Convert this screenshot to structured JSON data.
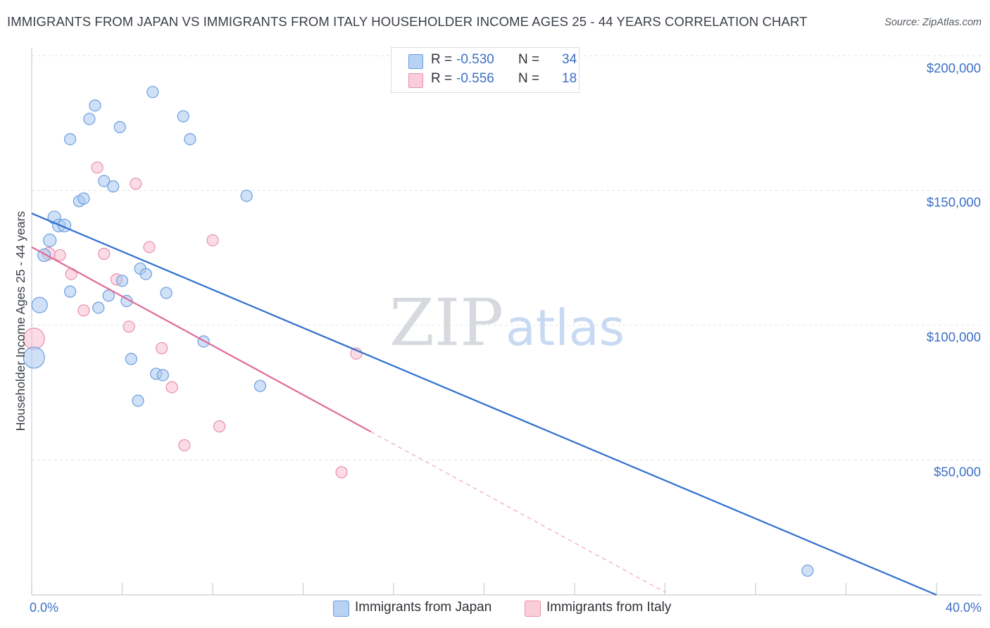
{
  "title": "IMMIGRANTS FROM JAPAN VS IMMIGRANTS FROM ITALY HOUSEHOLDER INCOME AGES 25 - 44 YEARS CORRELATION CHART",
  "source": "Source: ZipAtlas.com",
  "watermark": {
    "zip": "ZIP",
    "atlas": "atlas"
  },
  "colors": {
    "japan_fill": "#a9c8f0",
    "japan_stroke": "#6b9ee0",
    "japan_line": "#2f6fd0",
    "italy_fill": "#f7c0d0",
    "italy_stroke": "#e890aa",
    "italy_line": "#e06a96",
    "grid": "#dfe3e8",
    "tick_text": "#3d6fc6"
  },
  "legend": {
    "japan": {
      "r_label": "R =",
      "r_value": "-0.530",
      "n_label": "N =",
      "n_value": "34"
    },
    "italy": {
      "r_label": "R =",
      "r_value": "-0.556",
      "n_label": "N =",
      "n_value": "18"
    }
  },
  "bottom_legend": {
    "japan": "Immigrants from Japan",
    "italy": "Immigrants from Italy"
  },
  "chart_data": {
    "type": "scatter",
    "title": "IMMIGRANTS FROM JAPAN VS IMMIGRANTS FROM ITALY HOUSEHOLDER INCOME AGES 25 - 44 YEARS CORRELATION CHART",
    "xlabel": "",
    "ylabel": "Householder Income Ages 25 - 44 years",
    "xlim": [
      0,
      40
    ],
    "ylim": [
      0,
      205000
    ],
    "x_tick_labels": {
      "left": "0.0%",
      "right": "40.0%"
    },
    "y_ticks": [
      {
        "value": 50000,
        "label": "$50,000"
      },
      {
        "value": 100000,
        "label": "$100,000"
      },
      {
        "value": 150000,
        "label": "$150,000"
      },
      {
        "value": 200000,
        "label": "$200,000"
      }
    ],
    "series": [
      {
        "name": "Immigrants from Japan",
        "key": "japan",
        "points": [
          {
            "x": 0.1,
            "y": 88000,
            "r": 15
          },
          {
            "x": 0.35,
            "y": 107500,
            "r": 11
          },
          {
            "x": 0.55,
            "y": 126000,
            "r": 9
          },
          {
            "x": 0.8,
            "y": 131500,
            "r": 9
          },
          {
            "x": 1.0,
            "y": 140000,
            "r": 9
          },
          {
            "x": 1.2,
            "y": 137000,
            "r": 9
          },
          {
            "x": 1.45,
            "y": 137000,
            "r": 9
          },
          {
            "x": 1.7,
            "y": 112500,
            "r": 8
          },
          {
            "x": 1.7,
            "y": 169000,
            "r": 8
          },
          {
            "x": 2.1,
            "y": 146000,
            "r": 8
          },
          {
            "x": 2.3,
            "y": 147000,
            "r": 8
          },
          {
            "x": 2.55,
            "y": 176500,
            "r": 8
          },
          {
            "x": 2.8,
            "y": 181500,
            "r": 8
          },
          {
            "x": 2.95,
            "y": 106500,
            "r": 8
          },
          {
            "x": 3.2,
            "y": 153500,
            "r": 8
          },
          {
            "x": 3.4,
            "y": 111000,
            "r": 8
          },
          {
            "x": 3.6,
            "y": 151500,
            "r": 8
          },
          {
            "x": 3.9,
            "y": 173500,
            "r": 8
          },
          {
            "x": 4.0,
            "y": 116500,
            "r": 8
          },
          {
            "x": 4.2,
            "y": 109000,
            "r": 8
          },
          {
            "x": 4.4,
            "y": 87500,
            "r": 8
          },
          {
            "x": 4.7,
            "y": 72000,
            "r": 8
          },
          {
            "x": 4.8,
            "y": 121000,
            "r": 8
          },
          {
            "x": 5.05,
            "y": 119000,
            "r": 8
          },
          {
            "x": 5.35,
            "y": 186500,
            "r": 8
          },
          {
            "x": 5.5,
            "y": 82000,
            "r": 8
          },
          {
            "x": 5.8,
            "y": 81500,
            "r": 8
          },
          {
            "x": 5.95,
            "y": 112000,
            "r": 8
          },
          {
            "x": 6.7,
            "y": 177500,
            "r": 8
          },
          {
            "x": 7.0,
            "y": 169000,
            "r": 8
          },
          {
            "x": 7.6,
            "y": 94000,
            "r": 8
          },
          {
            "x": 9.5,
            "y": 148000,
            "r": 8
          },
          {
            "x": 10.1,
            "y": 77500,
            "r": 8
          },
          {
            "x": 34.3,
            "y": 9000,
            "r": 8
          }
        ],
        "trend": {
          "x0": 0,
          "y0": 141500,
          "x1": 40,
          "y1": 0
        }
      },
      {
        "name": "Immigrants from Italy",
        "key": "italy",
        "points": [
          {
            "x": 0.1,
            "y": 95000,
            "r": 15
          },
          {
            "x": 0.75,
            "y": 126500,
            "r": 9
          },
          {
            "x": 1.25,
            "y": 126000,
            "r": 8
          },
          {
            "x": 1.75,
            "y": 119000,
            "r": 8
          },
          {
            "x": 2.3,
            "y": 105500,
            "r": 8
          },
          {
            "x": 2.9,
            "y": 158500,
            "r": 8
          },
          {
            "x": 3.2,
            "y": 126500,
            "r": 8
          },
          {
            "x": 3.75,
            "y": 117000,
            "r": 8
          },
          {
            "x": 4.3,
            "y": 99500,
            "r": 8
          },
          {
            "x": 4.6,
            "y": 152500,
            "r": 8
          },
          {
            "x": 5.2,
            "y": 129000,
            "r": 8
          },
          {
            "x": 5.75,
            "y": 91500,
            "r": 8
          },
          {
            "x": 6.2,
            "y": 77000,
            "r": 8
          },
          {
            "x": 6.75,
            "y": 55500,
            "r": 8
          },
          {
            "x": 8.0,
            "y": 131500,
            "r": 8
          },
          {
            "x": 8.3,
            "y": 62500,
            "r": 8
          },
          {
            "x": 13.7,
            "y": 45500,
            "r": 8
          },
          {
            "x": 14.35,
            "y": 89500,
            "r": 8
          }
        ],
        "trend": {
          "x0": 0,
          "y0": 129000,
          "x1": 15,
          "y1": 60500,
          "dash_to_x": 28,
          "dash_to_y": 1000
        }
      }
    ]
  }
}
